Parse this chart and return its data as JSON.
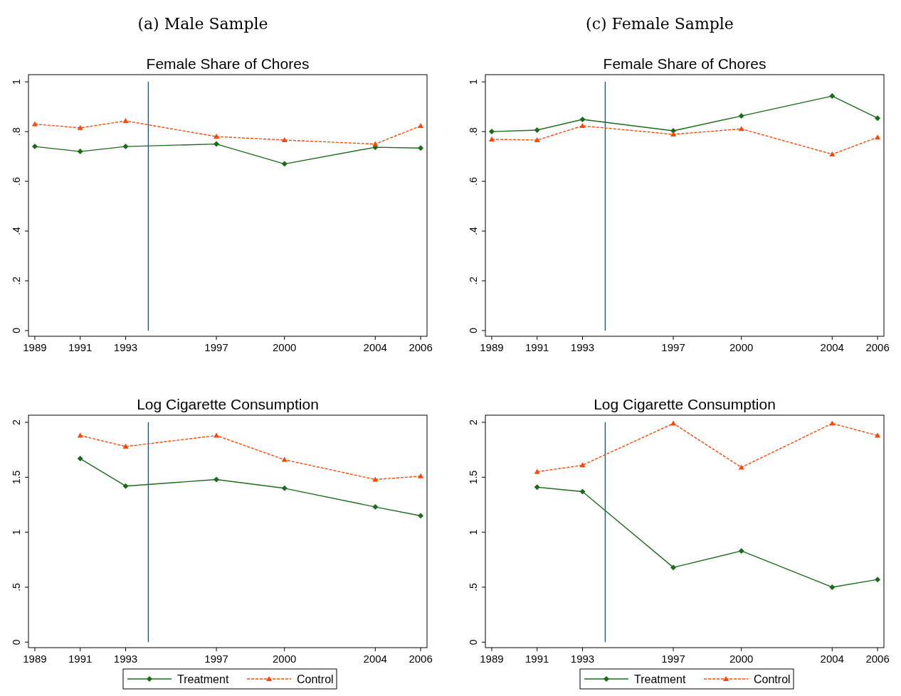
{
  "chart_data": [
    {
      "type": "line",
      "title": "(a) Male Sample",
      "subtitle": "Female Share of Chores",
      "x": [
        1989,
        1991,
        1993,
        1997,
        2000,
        2004,
        2006
      ],
      "xlim": [
        1988.72,
        2006.28
      ],
      "xticks": [
        1989,
        1991,
        1993,
        1997,
        2000,
        2004,
        2006
      ],
      "ylim": [
        -0.023,
        1.029
      ],
      "yticks": [
        0,
        {
          "value": 0.2,
          "label": ".2"
        },
        {
          "value": 0.4,
          "label": ".4"
        },
        {
          "value": 0.6,
          "label": ".6"
        },
        {
          "value": 0.8,
          "label": ".8"
        },
        1
      ],
      "grid": false,
      "legend": false,
      "ref_lines": [
        {
          "axis": "x",
          "value": 1994,
          "color": "#1f4e79"
        }
      ],
      "series": [
        {
          "color": "#1a6b1a",
          "marker": "diamond",
          "line_style": "solid",
          "values": [
            0.74,
            0.72,
            0.74,
            0.75,
            0.67,
            0.737,
            0.734
          ]
        },
        {
          "color": "#ff4500",
          "marker": "triangle",
          "line_style": "dashed",
          "values": [
            0.83,
            0.815,
            0.843,
            0.78,
            0.766,
            0.75,
            0.823
          ]
        }
      ]
    },
    {
      "type": "line",
      "title": "(c) Female Sample",
      "subtitle": "Female Share of Chores",
      "x": [
        1989,
        1991,
        1993,
        1997,
        2000,
        2004,
        2006
      ],
      "xlim": [
        1988.72,
        2006.28
      ],
      "xticks": [
        1989,
        1991,
        1993,
        1997,
        2000,
        2004,
        2006
      ],
      "ylim": [
        -0.023,
        1.029
      ],
      "yticks": [
        0,
        {
          "value": 0.2,
          "label": ".2"
        },
        {
          "value": 0.4,
          "label": ".4"
        },
        {
          "value": 0.6,
          "label": ".6"
        },
        {
          "value": 0.8,
          "label": ".8"
        },
        1
      ],
      "grid": false,
      "legend": false,
      "ref_lines": [
        {
          "axis": "x",
          "value": 1994,
          "color": "#1f4e79"
        }
      ],
      "series": [
        {
          "color": "#1a6b1a",
          "marker": "diamond",
          "line_style": "solid",
          "values": [
            0.8,
            0.806,
            0.849,
            0.803,
            0.863,
            0.943,
            0.854
          ]
        },
        {
          "color": "#ff4500",
          "marker": "triangle",
          "line_style": "dashed",
          "values": [
            0.769,
            0.766,
            0.823,
            0.789,
            0.811,
            0.709,
            0.777
          ]
        }
      ]
    },
    {
      "type": "line",
      "title": "Log Cigarette Consumption",
      "xlim": [
        1988.72,
        2006.28
      ],
      "xticks": [
        1989,
        1991,
        1993,
        1997,
        2000,
        2004,
        2006
      ],
      "ylim": [
        -0.05,
        2.065
      ],
      "yticks": [
        0,
        {
          "value": 0.5,
          "label": ".5"
        },
        1,
        1.5,
        2
      ],
      "grid": false,
      "legend": "bottom",
      "ref_lines": [
        {
          "axis": "x",
          "value": 1994,
          "color": "#1f4e79"
        }
      ],
      "series": [
        {
          "name": "Treatment",
          "color": "#1a6b1a",
          "marker": "diamond",
          "line_style": "solid",
          "x": [
            1991,
            1993,
            1997,
            2000,
            2004,
            2006
          ],
          "values": [
            1.67,
            1.42,
            1.48,
            1.4,
            1.23,
            1.15
          ]
        },
        {
          "name": "Control",
          "color": "#ff4500",
          "marker": "triangle",
          "line_style": "dashed",
          "x": [
            1991,
            1993,
            1997,
            2000,
            2004,
            2006
          ],
          "values": [
            1.88,
            1.78,
            1.88,
            1.66,
            1.48,
            1.51
          ]
        }
      ]
    },
    {
      "type": "line",
      "title": "Log Cigarette Consumption",
      "xlim": [
        1988.72,
        2006.28
      ],
      "xticks": [
        1989,
        1991,
        1993,
        1997,
        2000,
        2004,
        2006
      ],
      "ylim": [
        -0.05,
        2.065
      ],
      "yticks": [
        0,
        {
          "value": 0.5,
          "label": ".5"
        },
        1,
        1.5,
        2
      ],
      "grid": false,
      "legend": "bottom",
      "ref_lines": [
        {
          "axis": "x",
          "value": 1994,
          "color": "#1f4e79"
        }
      ],
      "series": [
        {
          "name": "Treatment",
          "color": "#1a6b1a",
          "marker": "diamond",
          "line_style": "solid",
          "x": [
            1991,
            1993,
            1997,
            2000,
            2004,
            2006
          ],
          "values": [
            1.41,
            1.37,
            0.68,
            0.83,
            0.5,
            0.57
          ]
        },
        {
          "name": "Control",
          "color": "#ff4500",
          "marker": "triangle",
          "line_style": "dashed",
          "x": [
            1991,
            1993,
            1997,
            2000,
            2004,
            2006
          ],
          "values": [
            1.55,
            1.61,
            1.99,
            1.59,
            1.99,
            1.88
          ]
        }
      ]
    }
  ]
}
